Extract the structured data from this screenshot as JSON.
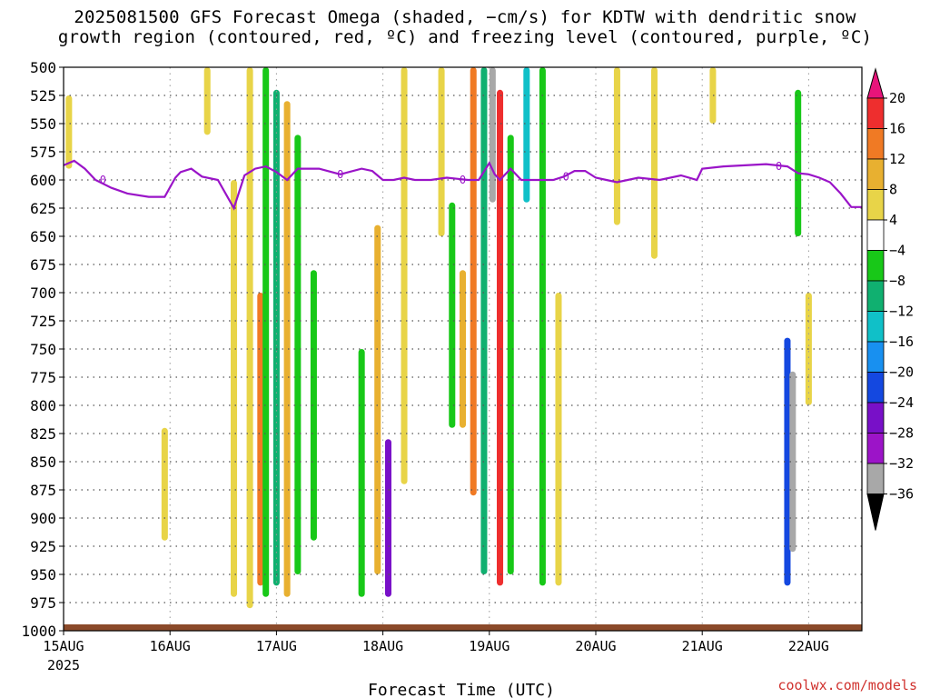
{
  "title_line1": "2025081500 GFS Forecast Omega (shaded, −cm/s) for KDTW with dendritic snow",
  "title_line2": "growth region (contoured, red, ºC) and freezing level (contoured, purple, ºC)",
  "credit": "coolwx.com/models",
  "colors": {
    "freezing_line": "#9a14c8",
    "ground": "#8b4a2a",
    "grid": "#555555"
  },
  "chart_data": {
    "type": "heatmap",
    "xlabel": "Forecast Time (UTC)",
    "ylabel": "",
    "x_ticks": [
      "15AUG",
      "16AUG",
      "17AUG",
      "18AUG",
      "19AUG",
      "20AUG",
      "21AUG",
      "22AUG"
    ],
    "x_year": "2025",
    "xlim_days": [
      0,
      7.5
    ],
    "y_ticks": [
      500,
      525,
      550,
      575,
      600,
      625,
      650,
      675,
      700,
      725,
      750,
      775,
      800,
      825,
      850,
      875,
      900,
      925,
      950,
      975,
      1000
    ],
    "ylim_hPa": [
      500,
      1000
    ],
    "grid": true,
    "colorbar": {
      "labels": [
        "20",
        "16",
        "12",
        "8",
        "4",
        "−4",
        "−8",
        "−12",
        "−16",
        "−20",
        "−24",
        "−28",
        "−32",
        "−36"
      ],
      "levels": [
        20,
        16,
        12,
        8,
        4,
        -4,
        -8,
        -12,
        -16,
        -20,
        -24,
        -28,
        -32,
        -36
      ],
      "colors": [
        "#e8147a",
        "#ee2e2e",
        "#f07a24",
        "#e8b030",
        "#e8d448",
        "#ffffff",
        "#18c818",
        "#10b070",
        "#10c0c8",
        "#1890f0",
        "#1448e0",
        "#7810c8",
        "#9c14c8",
        "#a8a8a8",
        "#000000"
      ]
    },
    "freezing_level_label": "0",
    "freezing_level": {
      "day": [
        0,
        0.1,
        0.2,
        0.3,
        0.45,
        0.6,
        0.8,
        0.95,
        1.05,
        1.1,
        1.2,
        1.3,
        1.45,
        1.6,
        1.7,
        1.8,
        1.9,
        2.0,
        2.1,
        2.2,
        2.4,
        2.6,
        2.8,
        2.9,
        3.0,
        3.1,
        3.2,
        3.3,
        3.45,
        3.6,
        3.8,
        3.9,
        4.0,
        4.05,
        4.1,
        4.2,
        4.3,
        4.4,
        4.5,
        4.6,
        4.7,
        4.8,
        4.9,
        5.0,
        5.1,
        5.2,
        5.4,
        5.6,
        5.8,
        5.95,
        6.0,
        6.2,
        6.4,
        6.6,
        6.8,
        6.9,
        7.0,
        7.1,
        7.2,
        7.3,
        7.4,
        7.5
      ],
      "hPa": [
        587,
        583,
        590,
        600,
        607,
        612,
        615,
        615,
        598,
        593,
        590,
        597,
        600,
        625,
        596,
        590,
        588,
        593,
        600,
        590,
        590,
        595,
        590,
        592,
        600,
        600,
        598,
        600,
        600,
        598,
        600,
        600,
        585,
        595,
        600,
        590,
        600,
        600,
        600,
        600,
        597,
        592,
        592,
        598,
        600,
        602,
        598,
        600,
        596,
        600,
        590,
        588,
        587,
        586,
        588,
        594,
        595,
        598,
        602,
        612,
        624,
        624
      ]
    },
    "omega_regions": [
      {
        "day": 0.05,
        "p_top": 525,
        "p_bot": 590,
        "level": 4
      },
      {
        "day": 0.95,
        "p_top": 820,
        "p_bot": 920,
        "level": 4
      },
      {
        "day": 1.35,
        "p_top": 500,
        "p_bot": 560,
        "level": 4
      },
      {
        "day": 1.6,
        "p_top": 600,
        "p_bot": 970,
        "level": 4
      },
      {
        "day": 1.75,
        "p_top": 500,
        "p_bot": 980,
        "level": 4
      },
      {
        "day": 1.85,
        "p_top": 700,
        "p_bot": 960,
        "level": 12
      },
      {
        "day": 1.9,
        "p_top": 500,
        "p_bot": 970,
        "level": -8
      },
      {
        "day": 2.0,
        "p_top": 520,
        "p_bot": 960,
        "level": -12
      },
      {
        "day": 2.1,
        "p_top": 530,
        "p_bot": 970,
        "level": 8
      },
      {
        "day": 2.2,
        "p_top": 560,
        "p_bot": 950,
        "level": -8
      },
      {
        "day": 2.35,
        "p_top": 680,
        "p_bot": 920,
        "level": -8
      },
      {
        "day": 2.8,
        "p_top": 750,
        "p_bot": 970,
        "level": -8
      },
      {
        "day": 2.95,
        "p_top": 640,
        "p_bot": 950,
        "level": 8
      },
      {
        "day": 3.05,
        "p_top": 830,
        "p_bot": 970,
        "level": -28
      },
      {
        "day": 3.2,
        "p_top": 500,
        "p_bot": 870,
        "level": 4
      },
      {
        "day": 3.55,
        "p_top": 500,
        "p_bot": 650,
        "level": 4
      },
      {
        "day": 3.65,
        "p_top": 620,
        "p_bot": 820,
        "level": -8
      },
      {
        "day": 3.75,
        "p_top": 680,
        "p_bot": 820,
        "level": 8
      },
      {
        "day": 3.85,
        "p_top": 500,
        "p_bot": 880,
        "level": 12
      },
      {
        "day": 3.95,
        "p_top": 500,
        "p_bot": 950,
        "level": -12
      },
      {
        "day": 4.03,
        "p_top": 500,
        "p_bot": 620,
        "level": -36
      },
      {
        "day": 4.1,
        "p_top": 520,
        "p_bot": 960,
        "level": 16
      },
      {
        "day": 4.2,
        "p_top": 560,
        "p_bot": 950,
        "level": -8
      },
      {
        "day": 4.35,
        "p_top": 500,
        "p_bot": 620,
        "level": -16
      },
      {
        "day": 4.5,
        "p_top": 500,
        "p_bot": 960,
        "level": -8
      },
      {
        "day": 4.65,
        "p_top": 700,
        "p_bot": 960,
        "level": 4
      },
      {
        "day": 5.2,
        "p_top": 500,
        "p_bot": 640,
        "level": 4
      },
      {
        "day": 5.55,
        "p_top": 500,
        "p_bot": 670,
        "level": 4
      },
      {
        "day": 6.1,
        "p_top": 500,
        "p_bot": 550,
        "level": 4
      },
      {
        "day": 6.8,
        "p_top": 740,
        "p_bot": 960,
        "level": -24
      },
      {
        "day": 6.85,
        "p_top": 770,
        "p_bot": 930,
        "level": -36
      },
      {
        "day": 6.9,
        "p_top": 520,
        "p_bot": 650,
        "level": -8
      },
      {
        "day": 7.0,
        "p_top": 700,
        "p_bot": 800,
        "level": 4
      }
    ]
  }
}
